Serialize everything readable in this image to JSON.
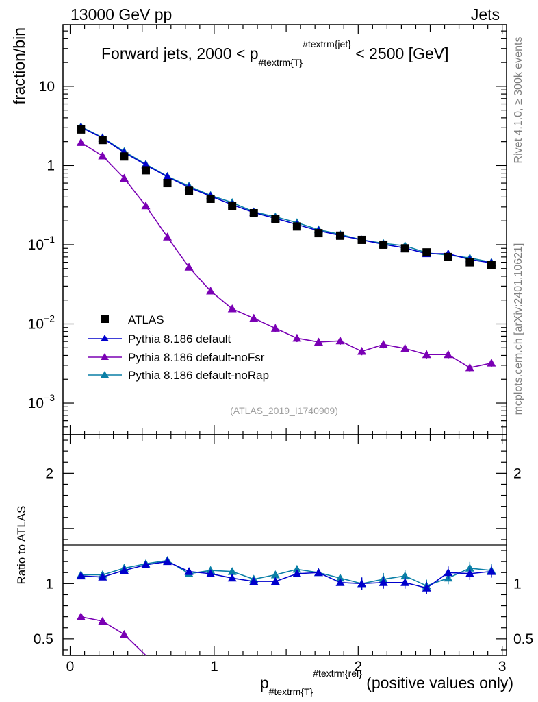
{
  "header": {
    "left": "13000 GeV pp",
    "right": "Jets"
  },
  "side_labels": {
    "rivet": "Rivet 4.1.0, ≥ 300k events",
    "mcplots": "mcplots.cern.ch [arXiv:2401.10621]"
  },
  "colors": {
    "data": "#000000",
    "default": "#0000cc",
    "noFsr": "#7a00b4",
    "noRap": "#0a7fa6",
    "watermark": "#a0a0a0"
  },
  "chart_data": {
    "type": "line",
    "title": "Forward jets, 2000 < p",
    "title_sub": "#textrm{T}",
    "title_sup": "#textrm{jet}",
    "title_tail": " < 2500 [GeV]",
    "ylabel": "fraction/bin",
    "ratio_ylabel": "Ratio to ATLAS",
    "xlabel_main": "p",
    "xlabel_sub": "#textrm{T}",
    "xlabel_sup": "#textrm{rel}",
    "xlabel_tail": " (positive values only)",
    "watermark": "(ATLAS_2019_I1740909)",
    "xlim": [
      -0.05,
      3.03
    ],
    "ylim": [
      0.0004,
      60
    ],
    "yscale": "log",
    "ratio_ylim": [
      0.35,
      2.35
    ],
    "x_ticks": [
      {
        "v": 0,
        "label": "0"
      },
      {
        "v": 1,
        "label": "1"
      },
      {
        "v": 2,
        "label": "2"
      },
      {
        "v": 3,
        "label": "3"
      }
    ],
    "y_ticks": [
      {
        "v": 10,
        "base": "10",
        "exp": ""
      },
      {
        "v": 1,
        "base": "1",
        "exp": ""
      },
      {
        "v": 0.1,
        "base": "10",
        "exp": "−1"
      },
      {
        "v": 0.01,
        "base": "10",
        "exp": "−2"
      },
      {
        "v": 0.001,
        "base": "10",
        "exp": "−3"
      }
    ],
    "ratio_ticks": [
      {
        "v": 0.5,
        "label": "0.5"
      },
      {
        "v": 1,
        "label": "1"
      },
      {
        "v": 2,
        "label": "2"
      }
    ],
    "x": [
      0.075,
      0.225,
      0.375,
      0.525,
      0.675,
      0.825,
      0.975,
      1.125,
      1.275,
      1.425,
      1.575,
      1.725,
      1.875,
      2.025,
      2.175,
      2.325,
      2.475,
      2.625,
      2.775,
      2.925
    ],
    "series": [
      {
        "name": "ATLAS",
        "key": "data",
        "marker": "square",
        "values": [
          2.85,
          2.1,
          1.3,
          0.87,
          0.6,
          0.48,
          0.38,
          0.31,
          0.25,
          0.21,
          0.17,
          0.14,
          0.13,
          0.115,
          0.1,
          0.09,
          0.08,
          0.07,
          0.06,
          0.055
        ]
      },
      {
        "name": "Pythia 8.186 default",
        "key": "default",
        "marker": "triangle",
        "values": [
          3.05,
          2.22,
          1.46,
          1.02,
          0.72,
          0.53,
          0.41,
          0.32,
          0.255,
          0.215,
          0.18,
          0.15,
          0.131,
          0.115,
          0.101,
          0.091,
          0.077,
          0.077,
          0.065,
          0.059
        ],
        "ratio": [
          1.07,
          1.06,
          1.12,
          1.17,
          1.2,
          1.11,
          1.09,
          1.05,
          1.02,
          1.02,
          1.09,
          1.1,
          1.01,
          1.0,
          1.01,
          1.01,
          0.96,
          1.1,
          1.09,
          1.11
        ]
      },
      {
        "name": "Pythia 8.186 default-noFsr",
        "key": "noFsr",
        "marker": "triangle",
        "values": [
          1.95,
          1.32,
          0.69,
          0.31,
          0.125,
          0.052,
          0.026,
          0.0155,
          0.0118,
          0.0088,
          0.0066,
          0.0059,
          0.0061,
          0.0045,
          0.0055,
          0.0049,
          0.0041,
          0.0041,
          0.0028,
          0.0032
        ],
        "ratio": [
          0.7,
          0.66,
          0.54,
          0.35
        ]
      },
      {
        "name": "Pythia 8.186 default-noRap",
        "key": "noRap",
        "marker": "triangle",
        "values": [
          3.1,
          2.25,
          1.5,
          1.04,
          0.73,
          0.55,
          0.42,
          0.34,
          0.26,
          0.225,
          0.19,
          0.155,
          0.135,
          0.115,
          0.104,
          0.097,
          0.079,
          0.074,
          0.068,
          0.06
        ],
        "ratio": [
          1.08,
          1.08,
          1.14,
          1.18,
          1.21,
          1.09,
          1.12,
          1.11,
          1.04,
          1.08,
          1.13,
          1.1,
          1.05,
          1.0,
          1.04,
          1.07,
          0.98,
          1.05,
          1.14,
          1.12
        ]
      }
    ]
  }
}
